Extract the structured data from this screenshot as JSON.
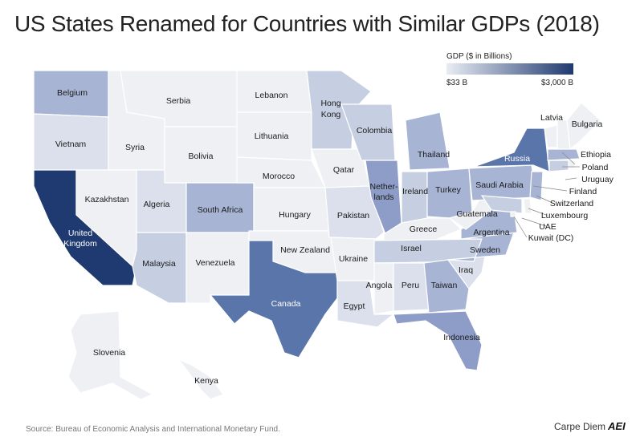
{
  "title": "US States Renamed for Countries with Similar GDPs (2018)",
  "legend": {
    "title": "GDP ($ in Billions)",
    "min_label": "$33 B",
    "max_label": "$3,000 B",
    "min_color": "#e8ecf4",
    "max_color": "#1f3a70"
  },
  "source": "Source: Bureau of Economic Analysis and International Monetary Fund.",
  "brand": {
    "name": "Carpe Diem",
    "logo_text": "AEI"
  },
  "colors": {
    "low": "#eef0f3",
    "light": "#dbe0ec",
    "light2": "#c6cfe2",
    "mid": "#a7b4d4",
    "mid2": "#8d9dc7",
    "dark": "#5a75aa",
    "darkest": "#1f3a70",
    "ocean": "#ffffff"
  },
  "states": [
    {
      "id": "WA",
      "country": "Belgium",
      "shade": "mid"
    },
    {
      "id": "OR",
      "country": "Vietnam",
      "shade": "light"
    },
    {
      "id": "CA",
      "country": "United Kingdom",
      "shade": "darkest"
    },
    {
      "id": "ID",
      "country": "Syria",
      "shade": "low"
    },
    {
      "id": "NV",
      "country": "Kazakhstan",
      "shade": "low"
    },
    {
      "id": "MT",
      "country": "Serbia",
      "shade": "low"
    },
    {
      "id": "WY",
      "country": "Bolivia",
      "shade": "low"
    },
    {
      "id": "UT",
      "country": "Algeria",
      "shade": "light"
    },
    {
      "id": "AZ",
      "country": "Malaysia",
      "shade": "light2"
    },
    {
      "id": "CO",
      "country": "South Africa",
      "shade": "mid"
    },
    {
      "id": "NM",
      "country": "Venezuela",
      "shade": "low"
    },
    {
      "id": "ND",
      "country": "Lebanon",
      "shade": "low"
    },
    {
      "id": "SD",
      "country": "Lithuania",
      "shade": "low"
    },
    {
      "id": "NE",
      "country": "Morocco",
      "shade": "low"
    },
    {
      "id": "KS",
      "country": "Hungary",
      "shade": "low"
    },
    {
      "id": "OK",
      "country": "New Zealand",
      "shade": "low"
    },
    {
      "id": "TX",
      "country": "Canada",
      "shade": "dark"
    },
    {
      "id": "MN",
      "country": "Hong Kong",
      "shade": "light2"
    },
    {
      "id": "IA",
      "country": "Qatar",
      "shade": "low"
    },
    {
      "id": "MO",
      "country": "Pakistan",
      "shade": "light"
    },
    {
      "id": "AR",
      "country": "Ukraine",
      "shade": "low"
    },
    {
      "id": "LA",
      "country": "Egypt",
      "shade": "light"
    },
    {
      "id": "WI",
      "country": "Colombia",
      "shade": "light2"
    },
    {
      "id": "IL",
      "country": "Netherlands",
      "shade": "mid2"
    },
    {
      "id": "MI",
      "country": "Thailand",
      "shade": "mid"
    },
    {
      "id": "IN",
      "country": "Ireland",
      "shade": "light2"
    },
    {
      "id": "OH",
      "country": "Turkey",
      "shade": "mid"
    },
    {
      "id": "KY",
      "country": "Greece",
      "shade": "low"
    },
    {
      "id": "TN",
      "country": "Israel",
      "shade": "light2"
    },
    {
      "id": "MS",
      "country": "Angola",
      "shade": "low"
    },
    {
      "id": "AL",
      "country": "Peru",
      "shade": "light"
    },
    {
      "id": "GA",
      "country": "Taiwan",
      "shade": "mid"
    },
    {
      "id": "FL",
      "country": "Indonesia",
      "shade": "mid2"
    },
    {
      "id": "SC",
      "country": "Iraq",
      "shade": "light"
    },
    {
      "id": "NC",
      "country": "Sweden",
      "shade": "mid"
    },
    {
      "id": "VA",
      "country": "Argentina",
      "shade": "mid"
    },
    {
      "id": "WV",
      "country": "Guatemala",
      "shade": "low"
    },
    {
      "id": "PA",
      "country": "Saudi Arabia",
      "shade": "mid"
    },
    {
      "id": "NY",
      "country": "Russia",
      "shade": "dark"
    },
    {
      "id": "VT",
      "country": "Latvia",
      "shade": "low"
    },
    {
      "id": "NH",
      "country": "Bulgaria",
      "shade": "low"
    },
    {
      "id": "ME",
      "country": "Bulgaria-region",
      "shade": "low"
    },
    {
      "id": "MA",
      "country": "Poland",
      "shade": "mid"
    },
    {
      "id": "RI",
      "country": "Ethiopia",
      "shade": "low"
    },
    {
      "id": "CT",
      "country": "Uruguay",
      "shade": "light2"
    },
    {
      "id": "NJ",
      "country": "Switzerland",
      "shade": "mid"
    },
    {
      "id": "DE",
      "country": "Luxembourg",
      "shade": "low"
    },
    {
      "id": "MD",
      "country": "UAE",
      "shade": "light2"
    },
    {
      "id": "DC",
      "country": "Kuwait (DC)",
      "shade": "low"
    },
    {
      "id": "AK",
      "country": "Slovenia",
      "shade": "low"
    },
    {
      "id": "HI",
      "country": "Kenya",
      "shade": "low"
    }
  ],
  "labels": {
    "WA": "Belgium",
    "OR": "Vietnam",
    "CA1": "United",
    "CA2": "Kingdom",
    "ID": "Syria",
    "NV": "Kazakhstan",
    "MT": "Serbia",
    "WY": "Bolivia",
    "UT": "Algeria",
    "AZ": "Malaysia",
    "CO": "South Africa",
    "NM": "Venezuela",
    "ND": "Lebanon",
    "SD": "Lithuania",
    "NE": "Morocco",
    "KS": "Hungary",
    "OK": "New Zealand",
    "TX": "Canada",
    "MN1": "Hong",
    "MN2": "Kong",
    "IA": "Qatar",
    "MO": "Pakistan",
    "AR": "Ukraine",
    "LA": "Egypt",
    "WI": "Colombia",
    "IL1": "Nether-",
    "IL2": "lands",
    "MI": "Thailand",
    "IN": "Ireland",
    "OH": "Turkey",
    "KY": "Greece",
    "TN": "Israel",
    "MS": "Angola",
    "AL": "Peru",
    "GA": "Taiwan",
    "FL": "Indonesia",
    "SC": "Iraq",
    "NC": "Sweden",
    "VA": "Argentina",
    "WV": "Guatemala",
    "PA": "Saudi Arabia",
    "NY": "Russia",
    "VT": "Latvia",
    "NH": "Bulgaria",
    "RI": "Ethiopia",
    "MA": "Poland",
    "CT": "Uruguay",
    "NJF": "Finland",
    "NJ": "Switzerland",
    "DE": "Luxembourg",
    "MD": "UAE",
    "DC": "Kuwait (DC)",
    "AK": "Slovenia",
    "HI": "Kenya"
  }
}
